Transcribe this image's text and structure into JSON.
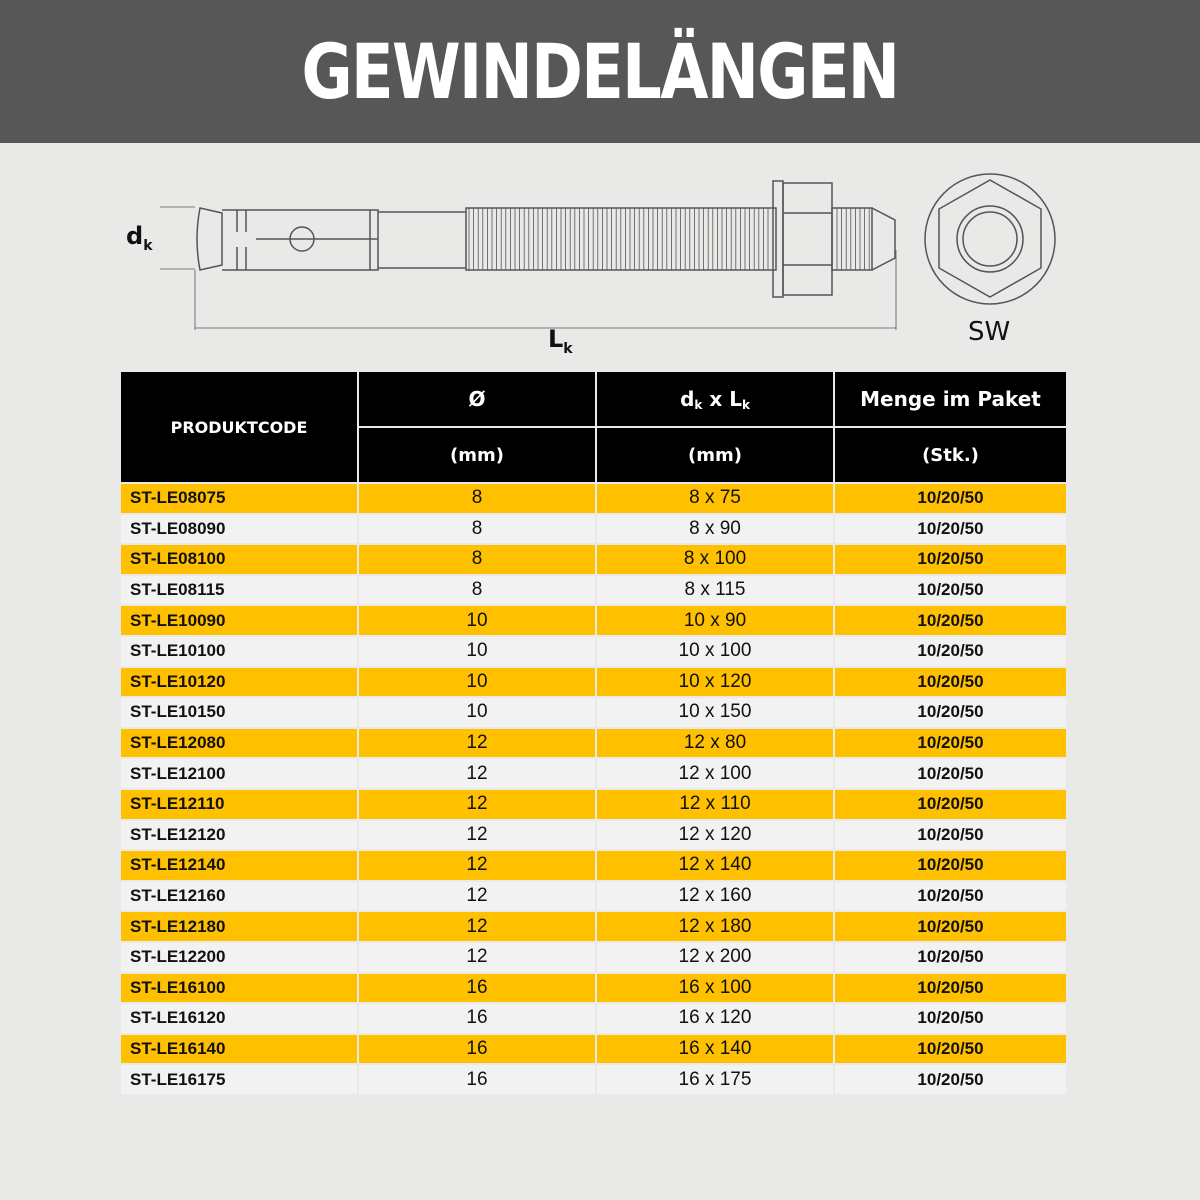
{
  "title": "GEWINDELÄNGEN",
  "drawing": {
    "dk_label": "d",
    "dk_sub": "k",
    "lk_label": "L",
    "lk_sub": "k",
    "sw_label": "SW"
  },
  "table": {
    "headers": {
      "code": "PRODUKTCODE",
      "dia": "Ø",
      "dia_unit": "(mm)",
      "size_d": "d",
      "size_sub1": "k",
      "size_x": " x L",
      "size_sub2": "k",
      "size_unit": "(mm)",
      "qty": "Menge im Paket",
      "qty_unit": "(Stk.)"
    },
    "rows": [
      [
        "ST-LE08075",
        "8",
        "8 x 75",
        "10/20/50"
      ],
      [
        "ST-LE08090",
        "8",
        "8 x 90",
        "10/20/50"
      ],
      [
        "ST-LE08100",
        "8",
        "8 x 100",
        "10/20/50"
      ],
      [
        "ST-LE08115",
        "8",
        "8 x 115",
        "10/20/50"
      ],
      [
        "ST-LE10090",
        "10",
        "10 x 90",
        "10/20/50"
      ],
      [
        "ST-LE10100",
        "10",
        "10 x 100",
        "10/20/50"
      ],
      [
        "ST-LE10120",
        "10",
        "10 x 120",
        "10/20/50"
      ],
      [
        "ST-LE10150",
        "10",
        "10 x 150",
        "10/20/50"
      ],
      [
        "ST-LE12080",
        "12",
        "12 x 80",
        "10/20/50"
      ],
      [
        "ST-LE12100",
        "12",
        "12 x 100",
        "10/20/50"
      ],
      [
        "ST-LE12110",
        "12",
        "12 x 110",
        "10/20/50"
      ],
      [
        "ST-LE12120",
        "12",
        "12 x 120",
        "10/20/50"
      ],
      [
        "ST-LE12140",
        "12",
        "12 x 140",
        "10/20/50"
      ],
      [
        "ST-LE12160",
        "12",
        "12 x 160",
        "10/20/50"
      ],
      [
        "ST-LE12180",
        "12",
        "12 x 180",
        "10/20/50"
      ],
      [
        "ST-LE12200",
        "12",
        "12 x 200",
        "10/20/50"
      ],
      [
        "ST-LE16100",
        "16",
        "16 x 100",
        "10/20/50"
      ],
      [
        "ST-LE16120",
        "16",
        "16 x 120",
        "10/20/50"
      ],
      [
        "ST-LE16140",
        "16",
        "16 x 140",
        "10/20/50"
      ],
      [
        "ST-LE16175",
        "16",
        "16 x 175",
        "10/20/50"
      ]
    ]
  },
  "colors": {
    "banner": "#575757",
    "row_highlight": "#ffc000",
    "row_plain": "#f2f2f2",
    "header": "#000000"
  }
}
